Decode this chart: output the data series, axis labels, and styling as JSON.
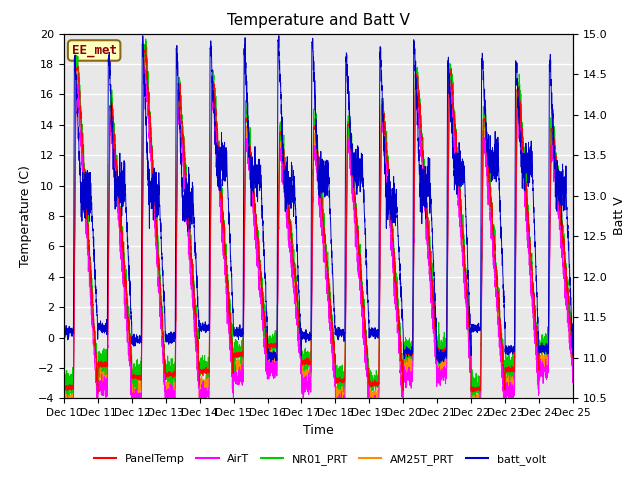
{
  "title": "Temperature and Batt V",
  "xlabel": "Time",
  "ylabel_left": "Temperature (C)",
  "ylabel_right": "Batt V",
  "ylim_left": [
    -4,
    20
  ],
  "ylim_right": [
    10.5,
    15.0
  ],
  "yticks_left": [
    -4,
    -2,
    0,
    2,
    4,
    6,
    8,
    10,
    12,
    14,
    16,
    18,
    20
  ],
  "yticks_right": [
    10.5,
    11.0,
    11.5,
    12.0,
    12.5,
    13.0,
    13.5,
    14.0,
    14.5,
    15.0
  ],
  "xtick_labels": [
    "Dec 10",
    "Dec 11",
    "Dec 12",
    "Dec 13",
    "Dec 14",
    "Dec 15",
    "Dec 16",
    "Dec 17",
    "Dec 18",
    "Dec 19",
    "Dec 20",
    "Dec 21",
    "Dec 22",
    "Dec 23",
    "Dec 24",
    "Dec 25"
  ],
  "annotation_text": "EE_met",
  "annotation_color": "#8B0000",
  "annotation_bg": "#FFFFC0",
  "line_colors": {
    "PanelTemp": "#FF0000",
    "AirT": "#FF00FF",
    "NR01_PRT": "#00CC00",
    "AM25T_PRT": "#FF8C00",
    "batt_volt": "#0000CC"
  },
  "bg_color": "#E8E8E8",
  "grid_color": "#FFFFFF",
  "num_days": 15,
  "pts_per_day": 288
}
